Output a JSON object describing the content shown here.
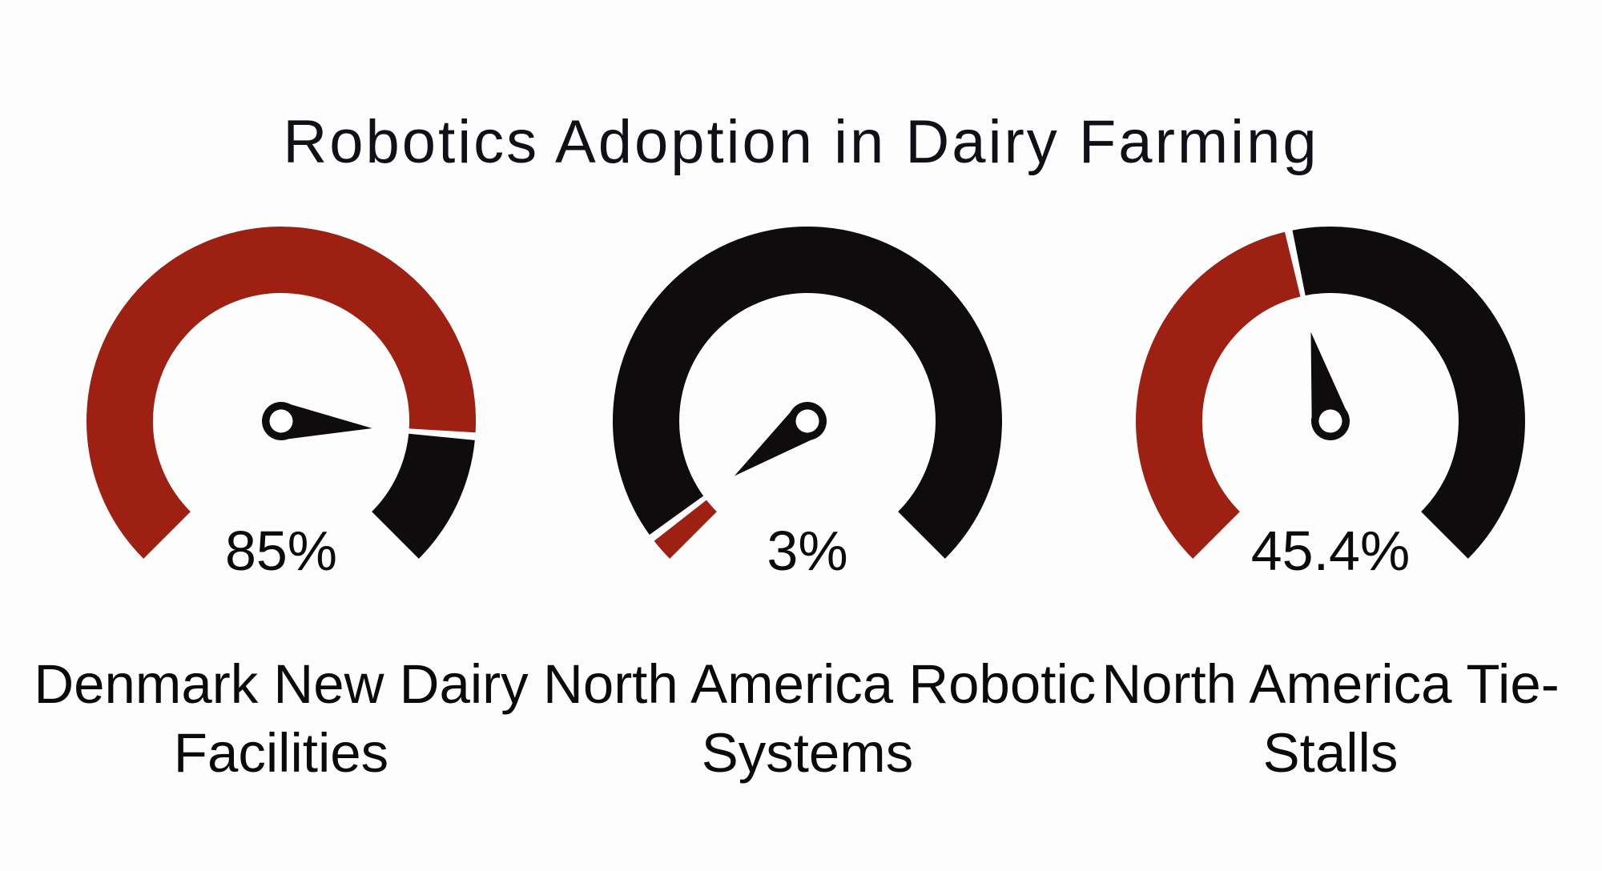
{
  "title": "Robotics Adoption in Dairy Farming",
  "colors": {
    "filled_arc": "#9E2012",
    "remaining_arc": "#0F0C0D",
    "needle": "#0F0C0D",
    "needle_hub_hole": "#FFFFFF",
    "text": "#0B0B0B",
    "background": "#FDFDFD"
  },
  "chart_data": {
    "type": "gauge",
    "title": "Robotics Adoption in Dairy Farming",
    "unit": "%",
    "range": [
      0,
      100
    ],
    "start_angle_deg": 225,
    "sweep_deg": 270,
    "gap_deg": 1.15,
    "gauges": [
      {
        "label": "Denmark New Dairy Facilities",
        "label_lines": [
          "Denmark New Dairy",
          "Facilities"
        ],
        "value": 85,
        "display": "85%"
      },
      {
        "label": "North America Robotic Systems",
        "label_lines": [
          "North America Robotic",
          "Systems"
        ],
        "value": 3,
        "display": "3%"
      },
      {
        "label": "North America Tie-Stalls",
        "label_lines": [
          "North America Tie-",
          "Stalls"
        ],
        "value": 45.4,
        "display": "45.4%"
      }
    ]
  }
}
